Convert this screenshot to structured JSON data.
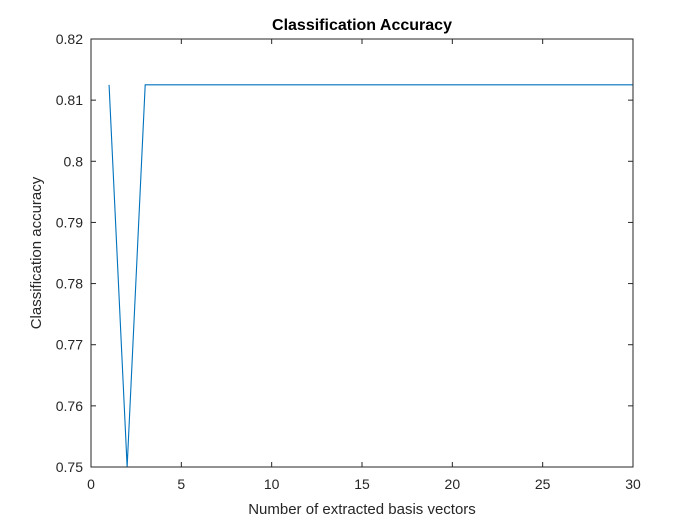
{
  "chart_data": {
    "type": "line",
    "title": "Classification Accuracy",
    "xlabel": "Number of extracted basis vectors",
    "ylabel": "Classification accuracy",
    "xlim": [
      0,
      30
    ],
    "ylim": [
      0.75,
      0.82
    ],
    "xticks": [
      0,
      5,
      10,
      15,
      20,
      25,
      30
    ],
    "xtick_labels": [
      "0",
      "5",
      "10",
      "15",
      "20",
      "25",
      "30"
    ],
    "yticks": [
      0.75,
      0.76,
      0.77,
      0.78,
      0.79,
      0.8,
      0.81,
      0.82
    ],
    "ytick_labels": [
      "0.75",
      "0.76",
      "0.77",
      "0.78",
      "0.79",
      "0.8",
      "0.81",
      "0.82"
    ],
    "grid": false,
    "series": [
      {
        "color": "#0072bd",
        "x": [
          1,
          2,
          3,
          4,
          5,
          6,
          7,
          8,
          9,
          10,
          11,
          12,
          13,
          14,
          15,
          16,
          17,
          18,
          19,
          20,
          21,
          22,
          23,
          24,
          25,
          26,
          27,
          28,
          29,
          30
        ],
        "y": [
          0.8125,
          0.75,
          0.8125,
          0.8125,
          0.8125,
          0.8125,
          0.8125,
          0.8125,
          0.8125,
          0.8125,
          0.8125,
          0.8125,
          0.8125,
          0.8125,
          0.8125,
          0.8125,
          0.8125,
          0.8125,
          0.8125,
          0.8125,
          0.8125,
          0.8125,
          0.8125,
          0.8125,
          0.8125,
          0.8125,
          0.8125,
          0.8125,
          0.8125,
          0.8125
        ]
      }
    ]
  }
}
